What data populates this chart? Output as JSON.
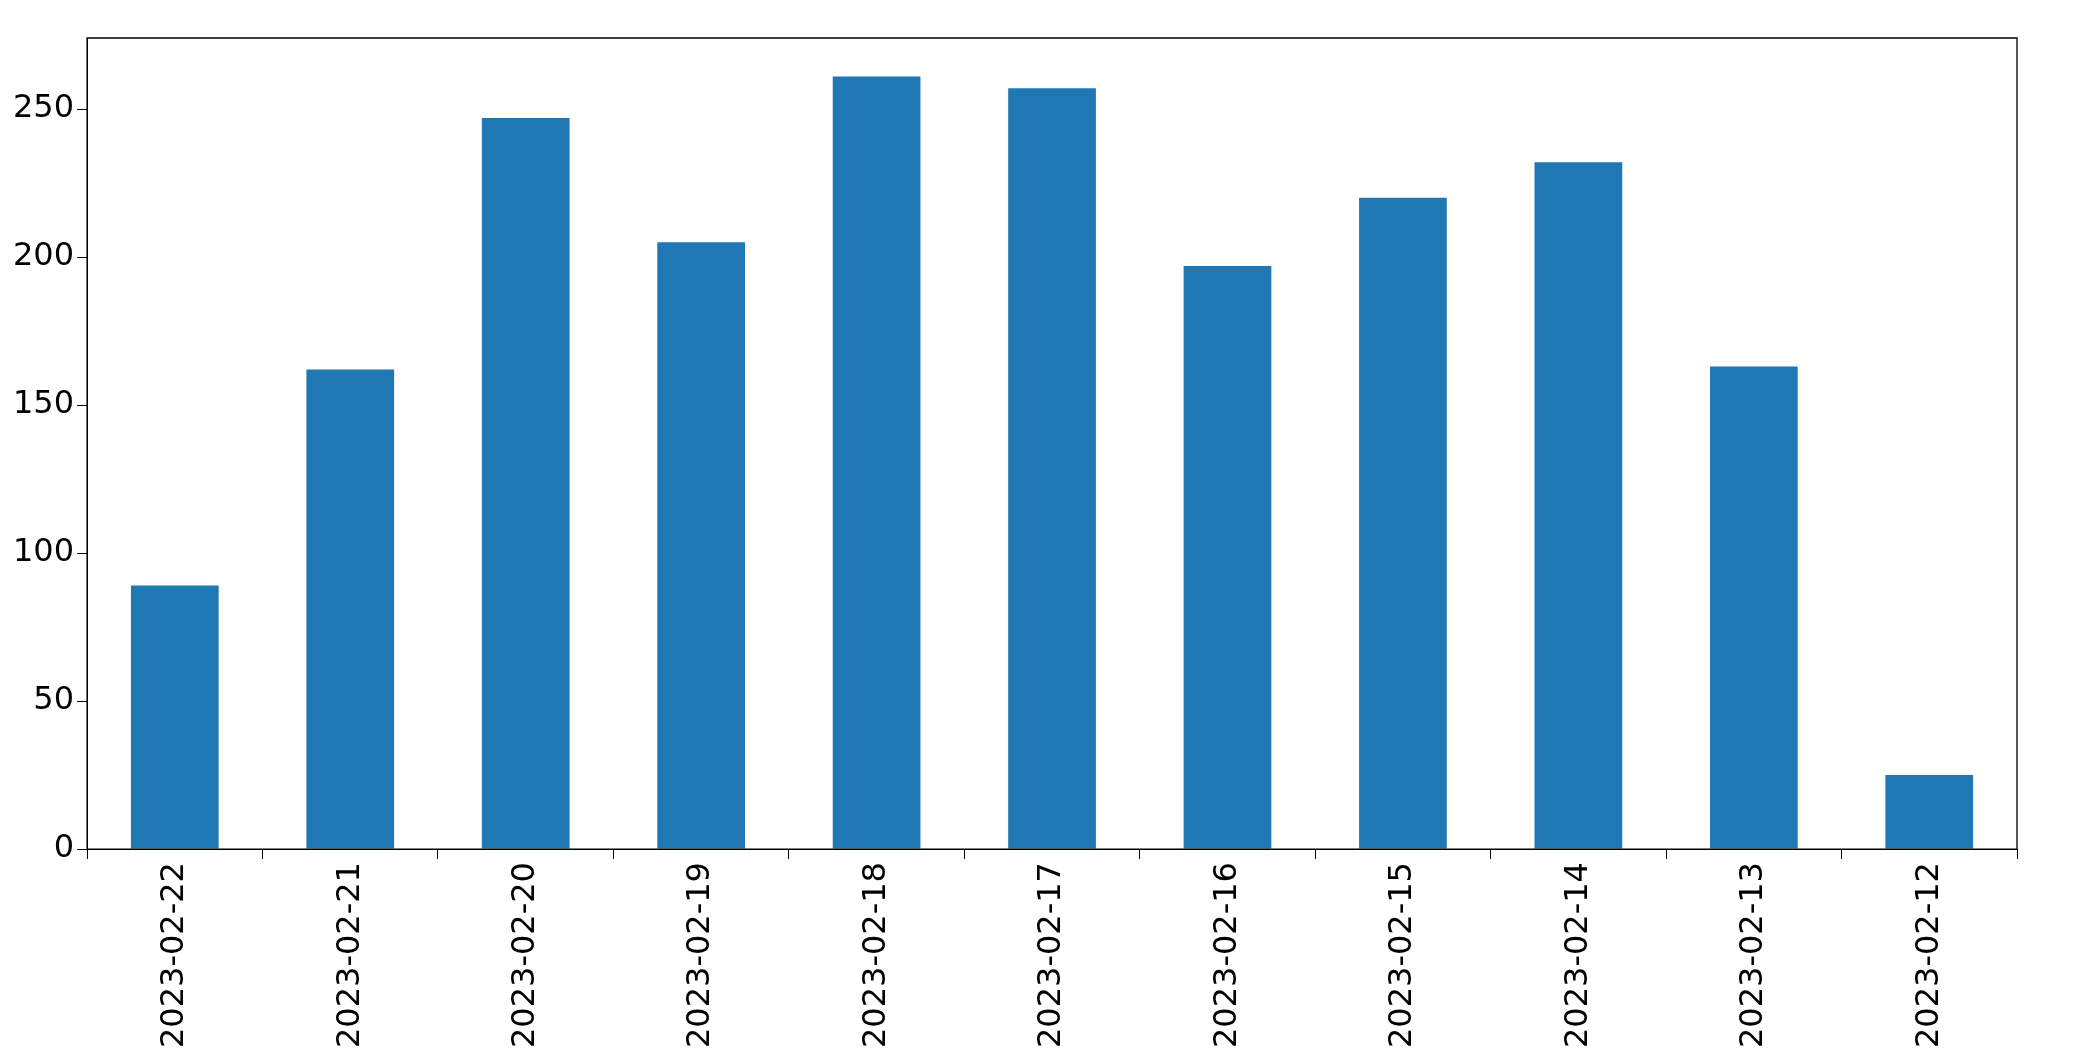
{
  "chart_data": {
    "type": "bar",
    "categories": [
      "2023-02-22",
      "2023-02-21",
      "2023-02-20",
      "2023-02-19",
      "2023-02-18",
      "2023-02-17",
      "2023-02-16",
      "2023-02-15",
      "2023-02-14",
      "2023-02-13",
      "2023-02-12"
    ],
    "values": [
      89,
      162,
      247,
      205,
      261,
      257,
      197,
      220,
      232,
      163,
      25
    ],
    "color": "#1f77b4",
    "ylim": [
      0,
      274
    ],
    "yticks": [
      0,
      50,
      100,
      150,
      200,
      250
    ],
    "grid": false,
    "legend": false
  }
}
